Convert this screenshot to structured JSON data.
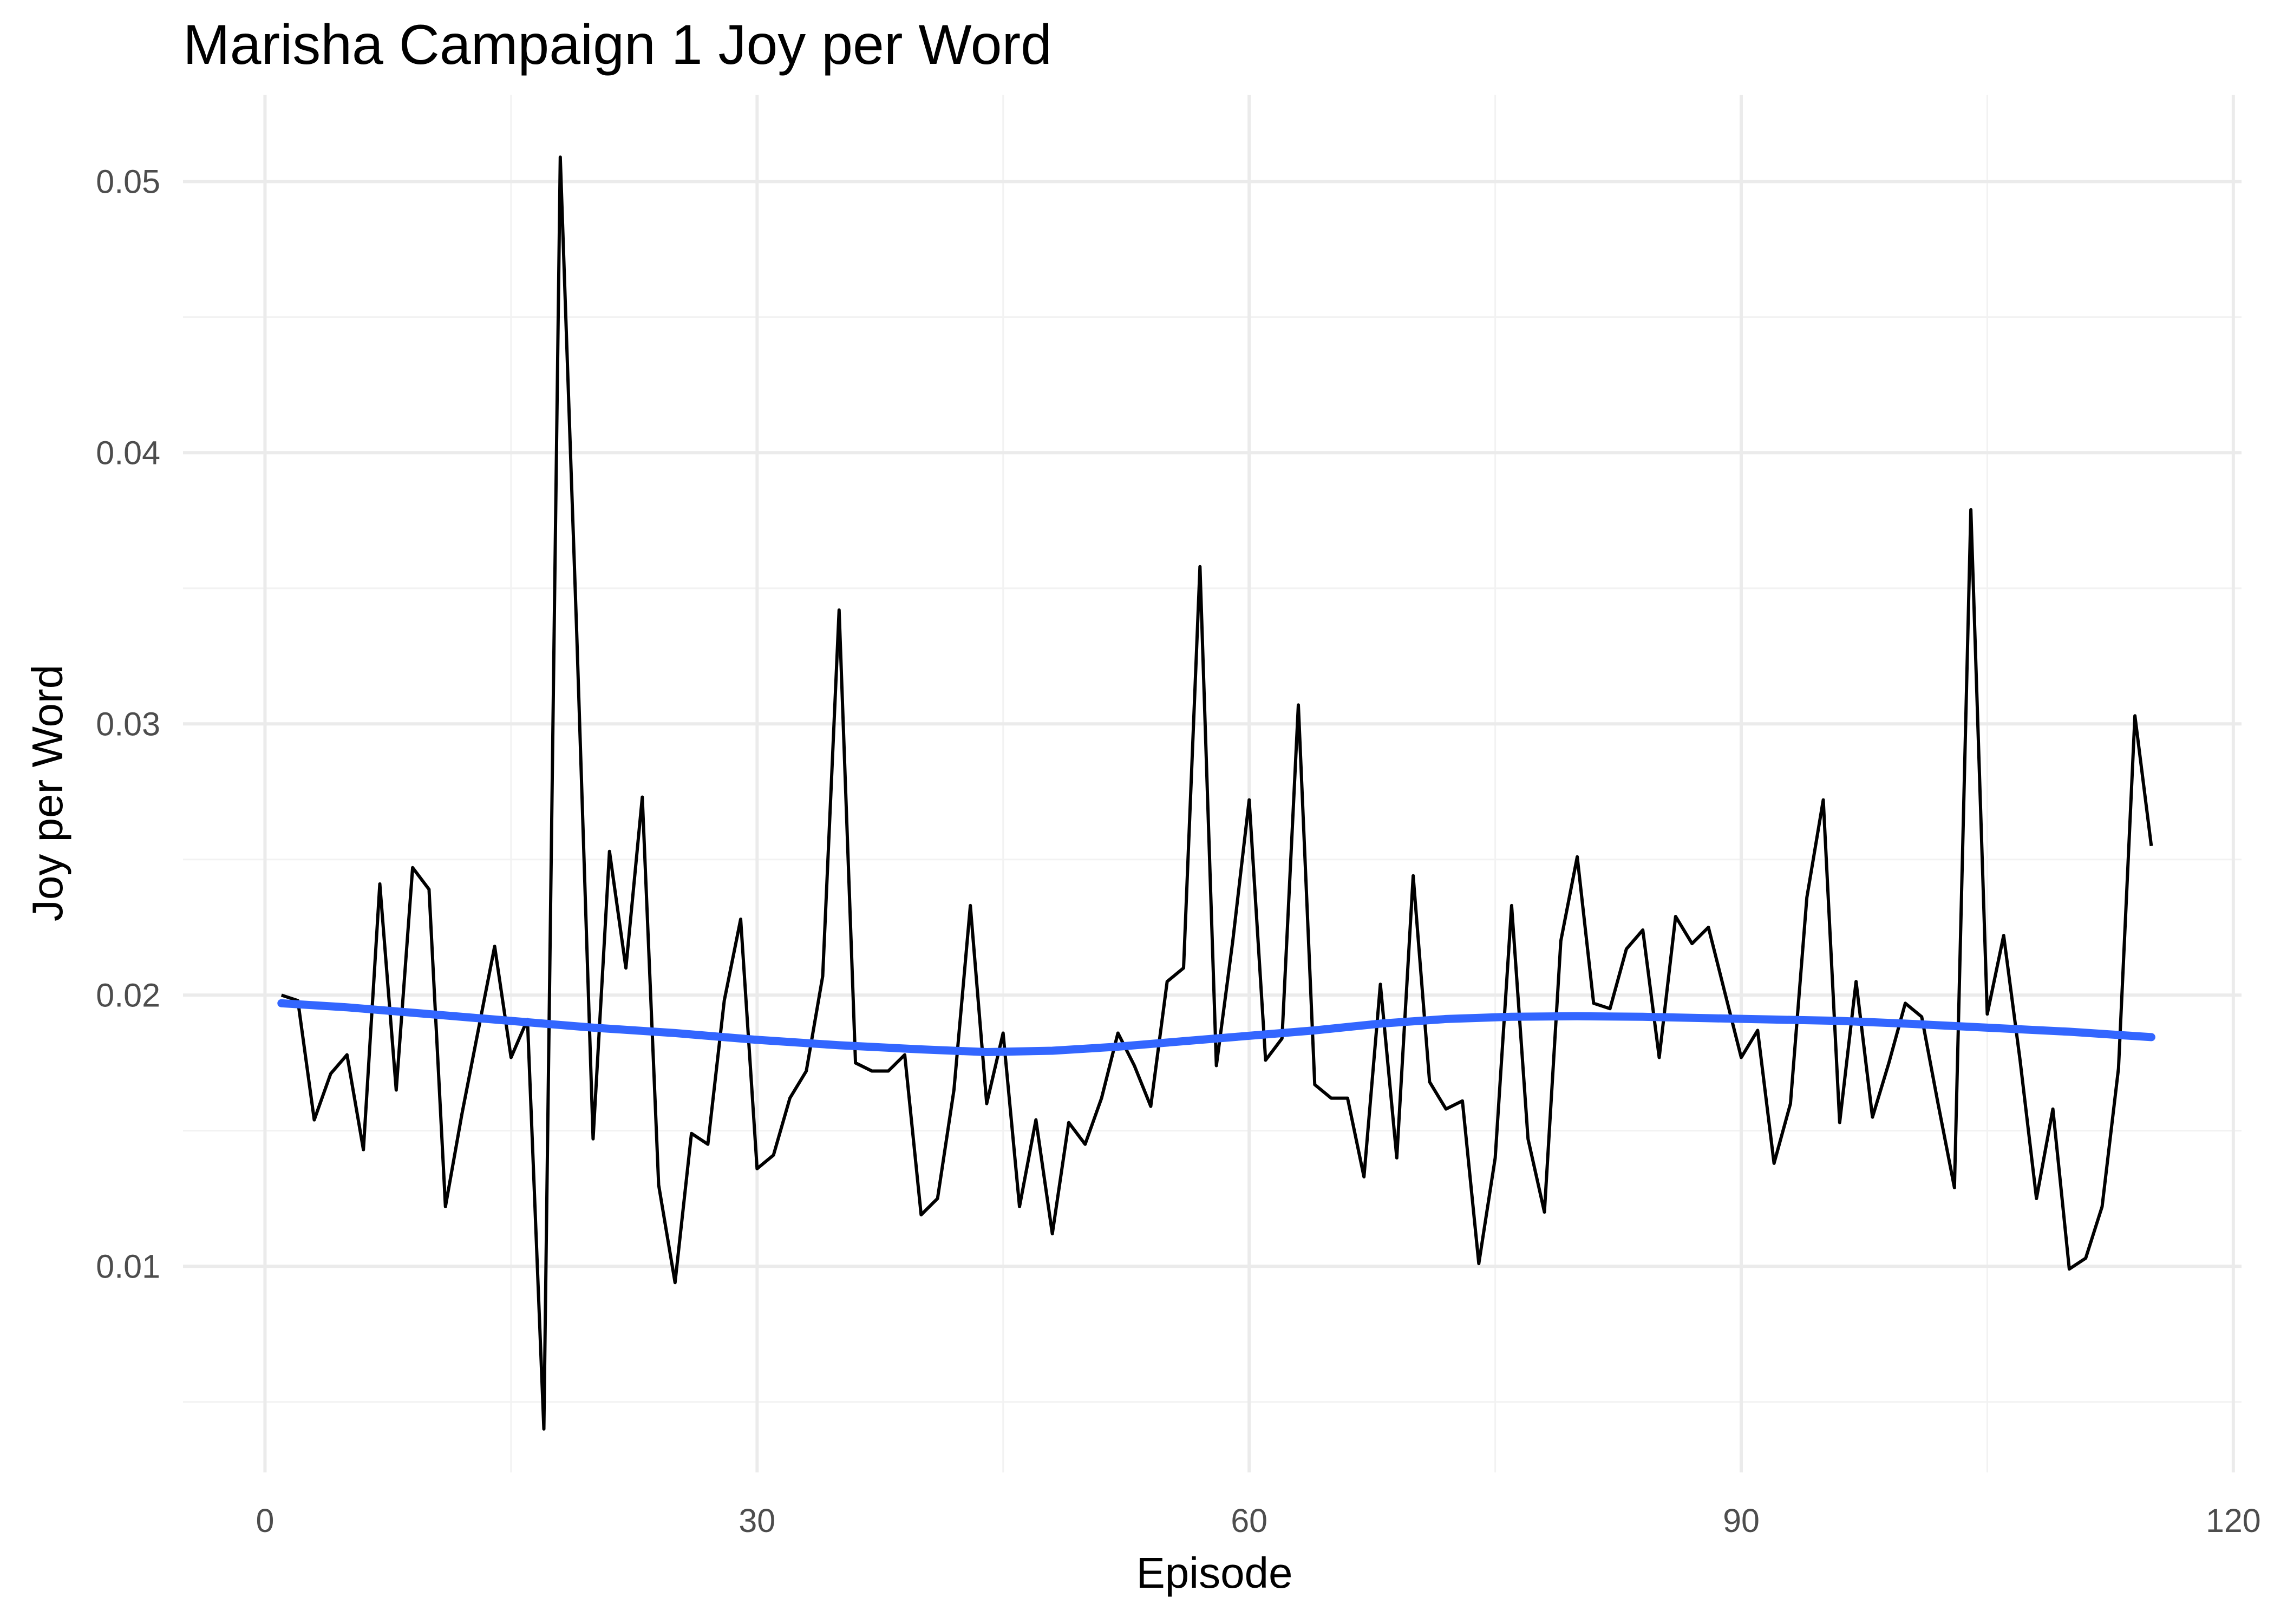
{
  "chart_data": {
    "type": "line",
    "title": "Marisha Campaign 1 Joy per Word",
    "xlabel": "Episode",
    "ylabel": "Joy per Word",
    "xlim": [
      -5,
      120.5
    ],
    "ylim": [
      0.0024,
      0.0532
    ],
    "x_ticks": [
      0,
      30,
      60,
      90,
      120
    ],
    "x_tick_labels": [
      "0",
      "30",
      "60",
      "90",
      "120"
    ],
    "y_ticks": [
      0.01,
      0.02,
      0.03,
      0.04,
      0.05
    ],
    "y_tick_labels": [
      "0.01",
      "0.02",
      "0.03",
      "0.04",
      "0.05"
    ],
    "grid": true,
    "series": [
      {
        "kind": "raw",
        "color": "#000000",
        "x": [
          1,
          2,
          3,
          4,
          5,
          6,
          7,
          8,
          9,
          10,
          11,
          12,
          13,
          14,
          15,
          16,
          17,
          18,
          19,
          20,
          21,
          22,
          23,
          24,
          25,
          26,
          27,
          28,
          29,
          30,
          31,
          32,
          33,
          34,
          35,
          36,
          37,
          38,
          39,
          40,
          41,
          42,
          43,
          44,
          45,
          46,
          47,
          48,
          49,
          50,
          51,
          52,
          53,
          54,
          55,
          56,
          57,
          58,
          59,
          60,
          61,
          62,
          63,
          64,
          65,
          66,
          67,
          68,
          69,
          70,
          71,
          72,
          73,
          74,
          75,
          76,
          77,
          78,
          79,
          80,
          81,
          82,
          83,
          84,
          85,
          86,
          87,
          88,
          89,
          90,
          91,
          92,
          93,
          94,
          95,
          96,
          97,
          98,
          99,
          100,
          101,
          102,
          103,
          104,
          105,
          106,
          107,
          108,
          109,
          110,
          111,
          112,
          113,
          114,
          115
        ],
        "y": [
          0.02,
          0.0198,
          0.0154,
          0.0171,
          0.0178,
          0.0143,
          0.0241,
          0.0165,
          0.0247,
          0.0239,
          0.0122,
          0.0156,
          0.0187,
          0.0218,
          0.0177,
          0.0191,
          0.004,
          0.0509,
          0.0334,
          0.0147,
          0.0253,
          0.021,
          0.0273,
          0.013,
          0.0094,
          0.0149,
          0.0145,
          0.0198,
          0.0228,
          0.0136,
          0.0141,
          0.0162,
          0.0172,
          0.0207,
          0.0342,
          0.0175,
          0.0172,
          0.0172,
          0.0178,
          0.0119,
          0.0125,
          0.0165,
          0.0233,
          0.016,
          0.0186,
          0.0122,
          0.0154,
          0.0112,
          0.0153,
          0.0145,
          0.0162,
          0.0186,
          0.0174,
          0.0159,
          0.0205,
          0.021,
          0.0358,
          0.0174,
          0.022,
          0.0272,
          0.0176,
          0.0184,
          0.0307,
          0.0167,
          0.0162,
          0.0162,
          0.0133,
          0.0204,
          0.014,
          0.0244,
          0.0168,
          0.0158,
          0.0161,
          0.0101,
          0.014,
          0.0233,
          0.0147,
          0.012,
          0.022,
          0.0251,
          0.0197,
          0.0195,
          0.0217,
          0.0224,
          0.0177,
          0.0229,
          0.0219,
          0.0225,
          0.0201,
          0.0177,
          0.0187,
          0.0138,
          0.016,
          0.0236,
          0.0272,
          0.0153,
          0.0205,
          0.0155,
          0.0175,
          0.0197,
          0.0192,
          0.016,
          0.0129,
          0.0379,
          0.0193,
          0.0222,
          0.0176,
          0.0125,
          0.0158,
          0.0099,
          0.0103,
          0.0122,
          0.0173,
          0.0303,
          0.0255
        ]
      },
      {
        "kind": "smooth",
        "color": "#3366ff",
        "x": [
          1,
          5,
          10,
          15,
          20,
          25,
          30,
          35,
          40,
          44,
          48,
          52,
          56,
          60,
          64,
          68,
          72,
          76,
          80,
          84,
          88,
          92,
          96,
          100,
          105,
          110,
          115
        ],
        "y": [
          0.0197,
          0.01955,
          0.0193,
          0.01905,
          0.0188,
          0.0186,
          0.01835,
          0.01815,
          0.018,
          0.0179,
          0.01795,
          0.0181,
          0.0183,
          0.0185,
          0.0187,
          0.01895,
          0.01912,
          0.0192,
          0.01922,
          0.0192,
          0.01915,
          0.0191,
          0.01905,
          0.01895,
          0.0188,
          0.01865,
          0.01845
        ]
      }
    ]
  }
}
